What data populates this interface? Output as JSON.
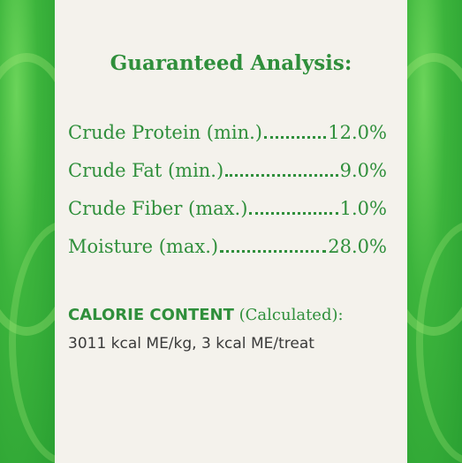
{
  "title": "Guaranteed Analysis:",
  "analysis": {
    "rows": [
      {
        "label": "Crude Protein (min.)",
        "value": "12.0%"
      },
      {
        "label": "Crude Fat (min.)",
        "value": "9.0%"
      },
      {
        "label": "Crude Fiber (max.)",
        "value": "1.0%"
      },
      {
        "label": "Moisture (max.)",
        "value": "28.0%"
      }
    ]
  },
  "calorie": {
    "heading": "CALORIE CONTENT",
    "note": "(Calculated):",
    "text": "3011 kcal ME/kg, 3 kcal ME/treat"
  }
}
